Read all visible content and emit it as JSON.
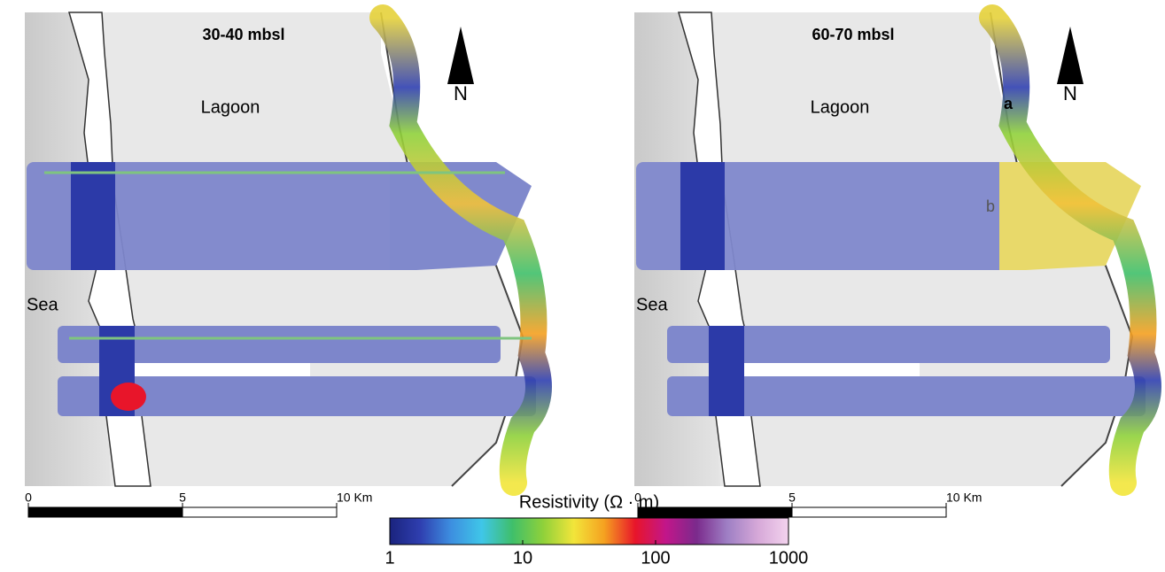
{
  "panels": [
    {
      "title": "30-40 mbsl",
      "lagoon": "Lagoon",
      "sea": "Sea",
      "north": "N",
      "labels": [],
      "scale_bar": {
        "lim": [
          0,
          10
        ],
        "ticks": [
          0,
          5,
          {
            "value": 10,
            "label": "10 Km"
          }
        ]
      }
    },
    {
      "title": "60-70 mbsl",
      "lagoon": "Lagoon",
      "sea": "Sea",
      "north": "N",
      "labels": [
        "a",
        "b"
      ],
      "scale_bar": {
        "lim": [
          0,
          10
        ],
        "ticks": [
          0,
          5,
          {
            "value": 10,
            "label": "10 Km"
          }
        ]
      }
    }
  ],
  "colorbar": {
    "title": "Resistivity (Ω · m)",
    "log": true,
    "lim": [
      1,
      1000
    ],
    "ticks": [
      1,
      10,
      100,
      1000
    ],
    "colors": [
      "#1a237e",
      "#2f3fb0",
      "#3d8fe0",
      "#3fc6e8",
      "#3fbf6a",
      "#8fd13a",
      "#f2e53a",
      "#f5a020",
      "#e8152a",
      "#c2168a",
      "#7b2a8c",
      "#9e7fc4",
      "#d6a8d8",
      "#f3d3ee"
    ]
  }
}
